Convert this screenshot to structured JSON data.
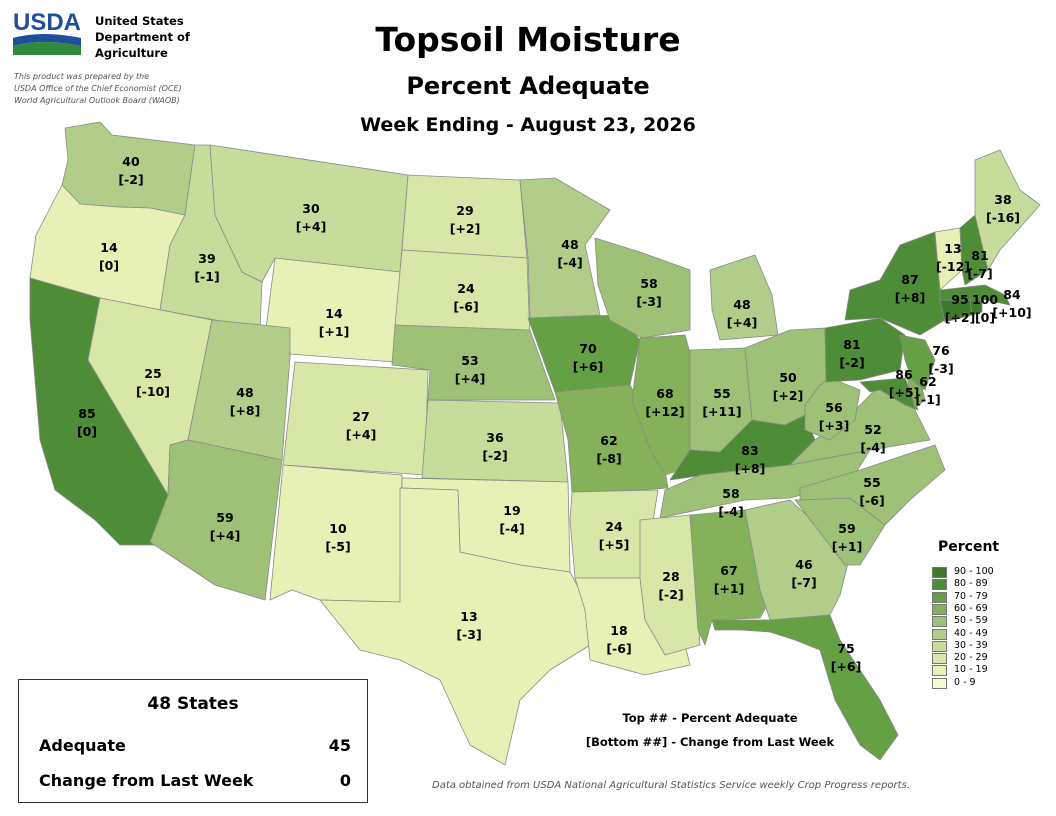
{
  "header": {
    "agency_lines": [
      "United States",
      "Department of",
      "Agriculture"
    ],
    "prepared_note": [
      "This product was prepared by the",
      "USDA Office of the Chief Economist (OCE)",
      "World Agricultural Outlook Board (WAOB)"
    ],
    "title": "Topsoil Moisture",
    "subtitle": "Percent Adequate",
    "week": "Week Ending - August 23, 2026"
  },
  "states": [
    {
      "state": "WA",
      "value": "40",
      "change": "[-2]"
    },
    {
      "state": "OR",
      "value": "14",
      "change": "[0]"
    },
    {
      "state": "CA",
      "value": "85",
      "change": "[0]"
    },
    {
      "state": "ID",
      "value": "39",
      "change": "[-1]"
    },
    {
      "state": "NV",
      "value": "25",
      "change": "[-10]"
    },
    {
      "state": "MT",
      "value": "30",
      "change": "[+4]"
    },
    {
      "state": "WY",
      "value": "14",
      "change": "[+1]"
    },
    {
      "state": "UT",
      "value": "48",
      "change": "[+8]"
    },
    {
      "state": "AZ",
      "value": "59",
      "change": "[+4]"
    },
    {
      "state": "CO",
      "value": "27",
      "change": "[+4]"
    },
    {
      "state": "NM",
      "value": "10",
      "change": "[-5]"
    },
    {
      "state": "ND",
      "value": "29",
      "change": "[+2]"
    },
    {
      "state": "SD",
      "value": "24",
      "change": "[-6]"
    },
    {
      "state": "NE",
      "value": "53",
      "change": "[+4]"
    },
    {
      "state": "KS",
      "value": "36",
      "change": "[-2]"
    },
    {
      "state": "OK",
      "value": "19",
      "change": "[-4]"
    },
    {
      "state": "TX",
      "value": "13",
      "change": "[-3]"
    },
    {
      "state": "MN",
      "value": "48",
      "change": "[-4]"
    },
    {
      "state": "IA",
      "value": "70",
      "change": "[+6]"
    },
    {
      "state": "MO",
      "value": "62",
      "change": "[-8]"
    },
    {
      "state": "AR",
      "value": "24",
      "change": "[+5]"
    },
    {
      "state": "LA",
      "value": "18",
      "change": "[-6]"
    },
    {
      "state": "WI",
      "value": "58",
      "change": "[-3]"
    },
    {
      "state": "IL",
      "value": "68",
      "change": "[+12]"
    },
    {
      "state": "MI",
      "value": "48",
      "change": "[+4]"
    },
    {
      "state": "IN",
      "value": "55",
      "change": "[+11]"
    },
    {
      "state": "OH",
      "value": "50",
      "change": "[+2]"
    },
    {
      "state": "KY",
      "value": "83",
      "change": "[+8]"
    },
    {
      "state": "TN",
      "value": "58",
      "change": "[-4]"
    },
    {
      "state": "MS",
      "value": "28",
      "change": "[-2]"
    },
    {
      "state": "AL",
      "value": "67",
      "change": "[+1]"
    },
    {
      "state": "GA",
      "value": "46",
      "change": "[-7]"
    },
    {
      "state": "FL",
      "value": "75",
      "change": "[+6]"
    },
    {
      "state": "SC",
      "value": "59",
      "change": "[+1]"
    },
    {
      "state": "NC",
      "value": "55",
      "change": "[-6]"
    },
    {
      "state": "VA",
      "value": "52",
      "change": "[-4]"
    },
    {
      "state": "WV",
      "value": "56",
      "change": "[+3]"
    },
    {
      "state": "PA",
      "value": "81",
      "change": "[-2]"
    },
    {
      "state": "MD",
      "value": "86",
      "change": "[+5]"
    },
    {
      "state": "DE",
      "value": "62",
      "change": "[-1]"
    },
    {
      "state": "NJ",
      "value": "76",
      "change": "[-3]"
    },
    {
      "state": "NY",
      "value": "87",
      "change": "[+8]"
    },
    {
      "state": "CT",
      "value": "95",
      "change": "[+2]"
    },
    {
      "state": "RI",
      "value": "100",
      "change": "[0]"
    },
    {
      "state": "MA",
      "value": "84",
      "change": "[+10]"
    },
    {
      "state": "VT",
      "value": "13",
      "change": "[-12]"
    },
    {
      "state": "NH",
      "value": "81",
      "change": "[-7]"
    },
    {
      "state": "ME",
      "value": "38",
      "change": "[-16]"
    }
  ],
  "legend": {
    "title": "Percent",
    "items": [
      {
        "label": "90 - 100",
        "color": "#3d7a2a"
      },
      {
        "label": "80 - 89",
        "color": "#4f8c38"
      },
      {
        "label": "70 - 79",
        "color": "#66a045"
      },
      {
        "label": "60 - 69",
        "color": "#86b15b"
      },
      {
        "label": "50 - 59",
        "color": "#9fc077"
      },
      {
        "label": "40 - 49",
        "color": "#b2cc89"
      },
      {
        "label": "30 - 39",
        "color": "#c5dc9a"
      },
      {
        "label": "20 - 29",
        "color": "#d7e7a8"
      },
      {
        "label": "10 - 19",
        "color": "#e7f1b5"
      },
      {
        "label": "0 - 9",
        "color": "#f7fbd0"
      }
    ]
  },
  "summary": {
    "title": "48 States",
    "rows": [
      {
        "label": "Adequate",
        "value": "45"
      },
      {
        "label": "Change from Last Week",
        "value": "0"
      }
    ]
  },
  "explanation": [
    "Top ## - Percent Adequate",
    "[Bottom ##] - Change from Last Week"
  ],
  "source": "Data obtained from USDA National Agricultural Statistics Service weekly Crop Progress reports."
}
